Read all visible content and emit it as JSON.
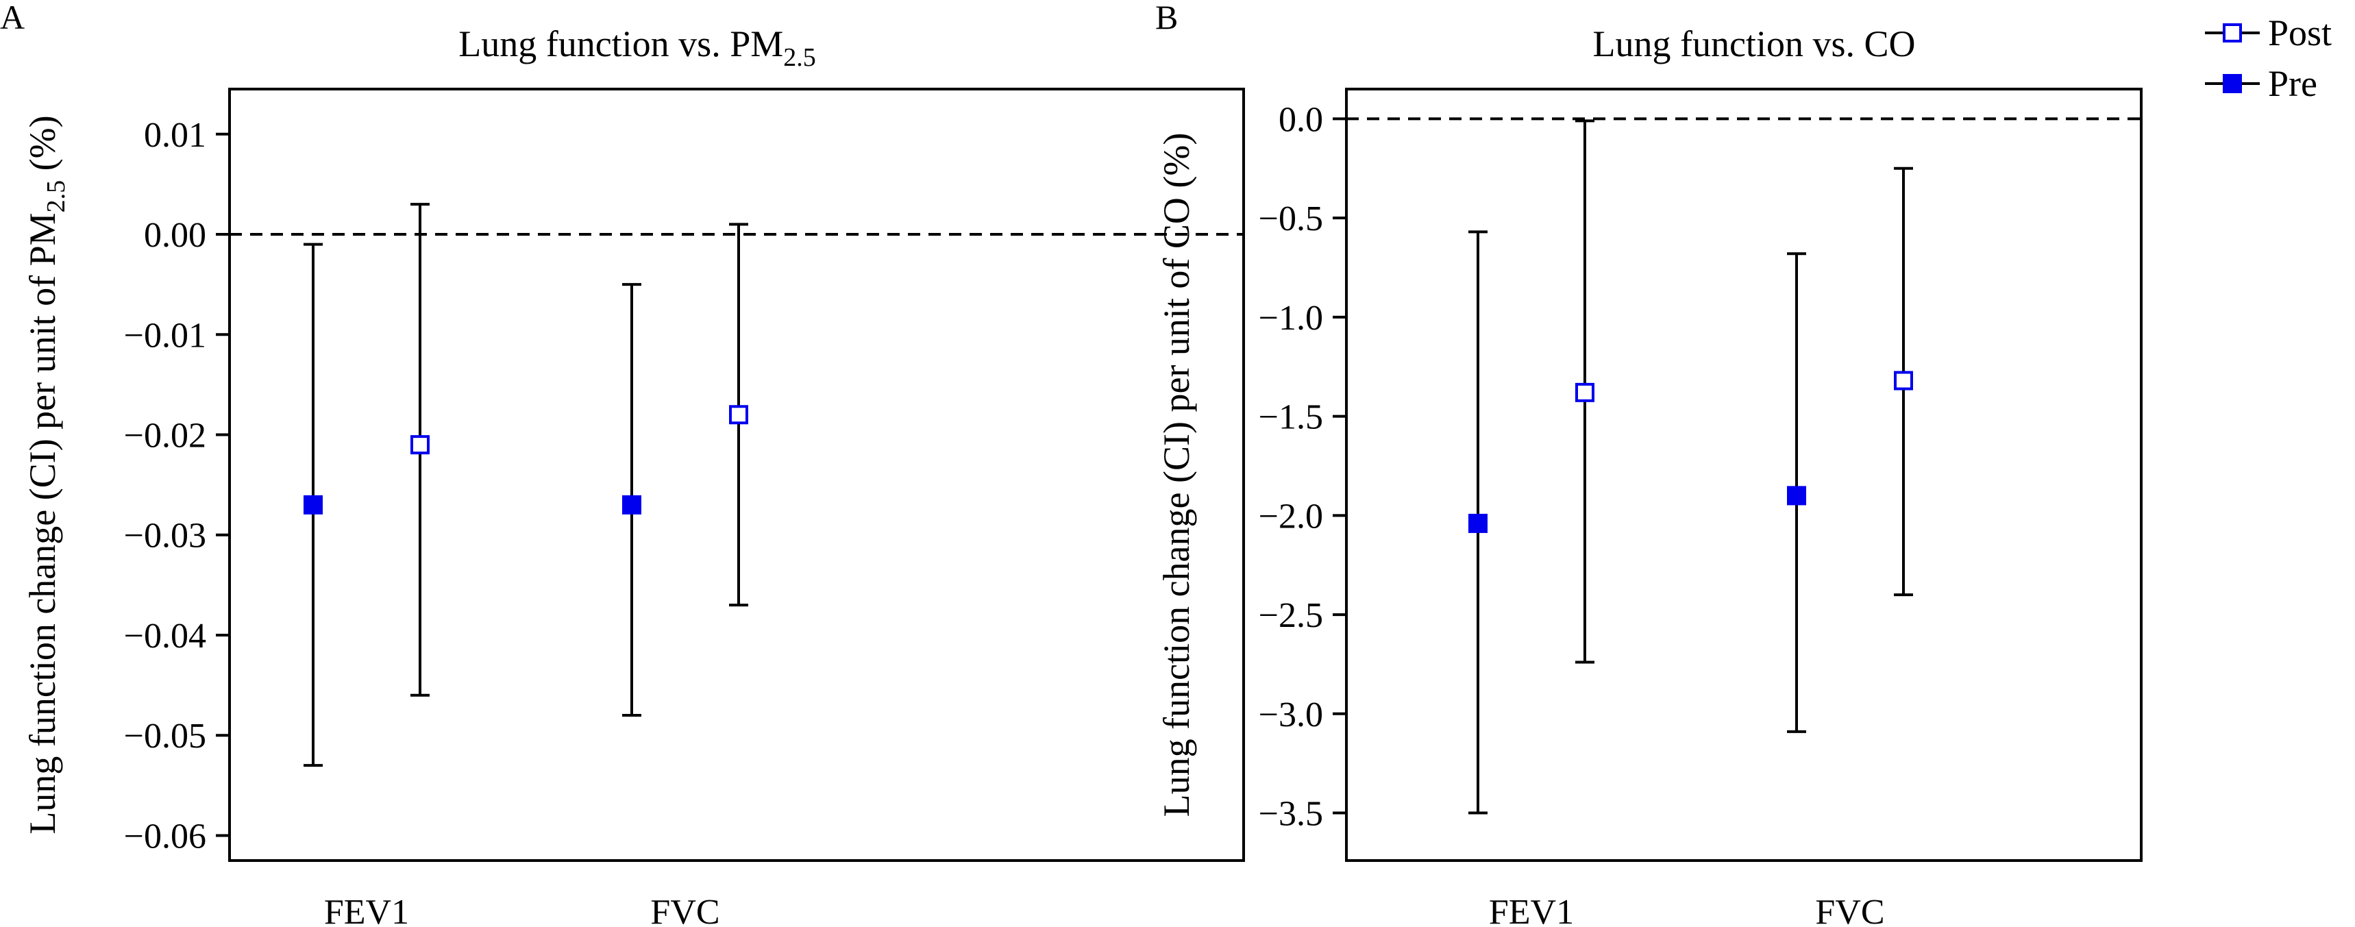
{
  "legend": {
    "items": [
      {
        "label": "Post",
        "marker": "open-square"
      },
      {
        "label": "Pre",
        "marker": "filled-square"
      }
    ]
  },
  "colors": {
    "marker": "#0000ee",
    "axis": "#000000"
  },
  "chart_data": [
    {
      "panel": "A",
      "type": "errorbar",
      "title": "Lung function vs. PM",
      "title_sub": "2.5",
      "ylabel": "Lung function change (CI) per unit of PM",
      "ylabel_sub": "2.5",
      "ylabel_tail": " (%)",
      "categories": [
        "FEV1",
        "FVC"
      ],
      "ylim": [
        -0.0625,
        0.0145
      ],
      "yticks": [
        0.01,
        0.0,
        -0.01,
        -0.02,
        -0.03,
        -0.04,
        -0.05,
        -0.06
      ],
      "ytick_labels": [
        "0.01",
        "0.00",
        "−0.01",
        "−0.02",
        "−0.03",
        "−0.04",
        "−0.05",
        "−0.06"
      ],
      "reference_line": 0,
      "series": [
        {
          "name": "Pre",
          "marker": "filled-square",
          "points": [
            {
              "category": "FEV1",
              "estimate": -0.027,
              "lower": -0.053,
              "upper": -0.001
            },
            {
              "category": "FVC",
              "estimate": -0.027,
              "lower": -0.048,
              "upper": -0.005
            }
          ]
        },
        {
          "name": "Post",
          "marker": "open-square",
          "points": [
            {
              "category": "FEV1",
              "estimate": -0.021,
              "lower": -0.046,
              "upper": 0.003
            },
            {
              "category": "FVC",
              "estimate": -0.018,
              "lower": -0.037,
              "upper": 0.001
            }
          ]
        }
      ]
    },
    {
      "panel": "B",
      "type": "errorbar",
      "title": "Lung function vs. CO",
      "ylabel": "Lung function change (CI) per unit of CO (%)",
      "categories": [
        "FEV1",
        "FVC"
      ],
      "ylim": [
        -3.74,
        0.15
      ],
      "yticks": [
        0.0,
        -0.5,
        -1.0,
        -1.5,
        -2.0,
        -2.5,
        -3.0,
        -3.5
      ],
      "ytick_labels": [
        "0.0",
        "−0.5",
        "−1.0",
        "−1.5",
        "−2.0",
        "−2.5",
        "−3.0",
        "−3.5"
      ],
      "reference_line": 0,
      "series": [
        {
          "name": "Pre",
          "marker": "filled-square",
          "points": [
            {
              "category": "FEV1",
              "estimate": -2.04,
              "lower": -3.5,
              "upper": -0.57
            },
            {
              "category": "FVC",
              "estimate": -1.9,
              "lower": -3.09,
              "upper": -0.68
            }
          ]
        },
        {
          "name": "Post",
          "marker": "open-square",
          "points": [
            {
              "category": "FEV1",
              "estimate": -1.38,
              "lower": -2.74,
              "upper": -0.01
            },
            {
              "category": "FVC",
              "estimate": -1.32,
              "lower": -2.4,
              "upper": -0.25
            }
          ]
        }
      ]
    }
  ]
}
